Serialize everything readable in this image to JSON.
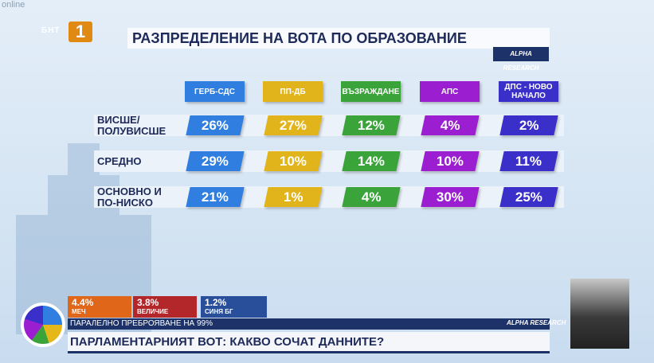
{
  "channel": {
    "online": "online",
    "name": "БНТ",
    "logo": "1"
  },
  "header": {
    "title": "РАЗПРЕДЕЛЕНИЕ НА ВОТА ПО ОБРАЗОВАНИЕ",
    "brand": "ALPHA RESEARCH"
  },
  "table": {
    "columns": [
      "ГЕРБ-СДС",
      "ПП-ДБ",
      "ВЪЗРАЖДАНЕ",
      "АПС",
      "ДПС - НОВО НАЧАЛО"
    ],
    "rows": [
      {
        "label": "ВИСШЕ/ ПОЛУВИСШЕ",
        "cells": [
          "26%",
          "27%",
          "12%",
          "4%",
          "2%"
        ]
      },
      {
        "label": "СРЕДНО",
        "cells": [
          "29%",
          "10%",
          "14%",
          "10%",
          "11%"
        ]
      },
      {
        "label": "ОСНОВНО И ПО-НИСКО",
        "cells": [
          "21%",
          "1%",
          "4%",
          "30%",
          "25%"
        ]
      }
    ],
    "colors": [
      "#2f7ee0",
      "#e2b41c",
      "#3aa33a",
      "#9b1fd1",
      "#3a2fc8"
    ]
  },
  "ticker": [
    {
      "value": "4.4%",
      "name": "МЕЧ",
      "color": "#e0661a"
    },
    {
      "value": "3.8%",
      "name": "ВЕЛИЧИЕ",
      "color": "#b3262a"
    },
    {
      "value": "1.2%",
      "name": "СИНЯ БГ",
      "color": "#2a4f9a"
    }
  ],
  "footer": {
    "strip": "ПАРАЛЕЛНО ПРЕБРОЯВАНЕ НА 99%",
    "brand": "ALPHA RESEARCH",
    "headline": "ПАРЛАМЕНТАРНИЯТ ВОТ: КАКВО СОЧАТ ДАННИТЕ?"
  }
}
